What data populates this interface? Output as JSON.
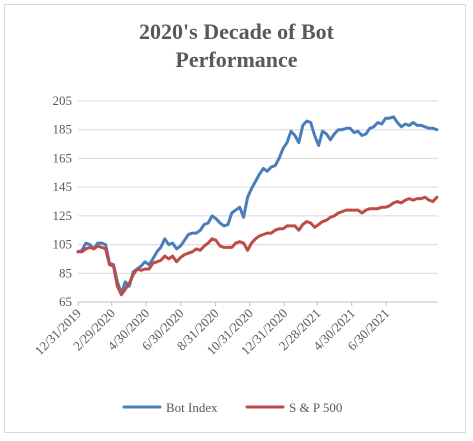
{
  "chart_data": {
    "type": "line",
    "title_lines": [
      "2020's Decade of Bot",
      "Performance"
    ],
    "xlabel": "",
    "ylabel": "",
    "ylim": [
      65,
      205
    ],
    "yticks": [
      65,
      85,
      105,
      125,
      145,
      165,
      185,
      205
    ],
    "xlim": [
      "2019-12-31",
      "2021-09-30"
    ],
    "xtick_labels": [
      "12/31/2019",
      "2/29/2020",
      "4/30/2020",
      "6/30/2020",
      "8/31/2020",
      "10/31/2020",
      "12/31/2020",
      "2/28/2021",
      "4/30/2021",
      "6/30/2021"
    ],
    "grid": "horizontal",
    "legend_position": "bottom",
    "x": [
      "2019-12-31",
      "2020-01-07",
      "2020-01-14",
      "2020-01-21",
      "2020-01-28",
      "2020-02-04",
      "2020-02-11",
      "2020-02-18",
      "2020-02-25",
      "2020-03-03",
      "2020-03-10",
      "2020-03-17",
      "2020-03-24",
      "2020-03-31",
      "2020-04-07",
      "2020-04-14",
      "2020-04-21",
      "2020-04-28",
      "2020-05-05",
      "2020-05-12",
      "2020-05-19",
      "2020-05-26",
      "2020-06-02",
      "2020-06-09",
      "2020-06-16",
      "2020-06-23",
      "2020-06-30",
      "2020-07-07",
      "2020-07-14",
      "2020-07-21",
      "2020-07-28",
      "2020-08-04",
      "2020-08-11",
      "2020-08-18",
      "2020-08-25",
      "2020-09-01",
      "2020-09-08",
      "2020-09-15",
      "2020-09-22",
      "2020-09-29",
      "2020-10-06",
      "2020-10-13",
      "2020-10-20",
      "2020-10-27",
      "2020-11-03",
      "2020-11-10",
      "2020-11-17",
      "2020-11-24",
      "2020-12-01",
      "2020-12-08",
      "2020-12-15",
      "2020-12-22",
      "2020-12-29",
      "2021-01-05",
      "2021-01-12",
      "2021-01-19",
      "2021-01-26",
      "2021-02-02",
      "2021-02-09",
      "2021-02-16",
      "2021-02-23",
      "2021-03-02",
      "2021-03-09",
      "2021-03-16",
      "2021-03-23",
      "2021-03-30",
      "2021-04-06",
      "2021-04-13",
      "2021-04-20",
      "2021-04-27",
      "2021-05-04",
      "2021-05-11",
      "2021-05-18",
      "2021-05-25",
      "2021-06-01",
      "2021-06-08",
      "2021-06-15",
      "2021-06-22",
      "2021-06-29",
      "2021-07-06",
      "2021-07-13",
      "2021-07-20",
      "2021-07-27",
      "2021-08-03",
      "2021-08-10",
      "2021-08-17",
      "2021-08-24",
      "2021-08-31",
      "2021-09-07",
      "2021-09-14",
      "2021-09-21",
      "2021-09-28"
    ],
    "series": [
      {
        "name": "Bot Index",
        "color": "#4a7ebb",
        "values": [
          100,
          101,
          106,
          105,
          102,
          106,
          106,
          105,
          92,
          91,
          79,
          71,
          79,
          76,
          86,
          88,
          90,
          93,
          91,
          95,
          100,
          103,
          109,
          105,
          106,
          102,
          104,
          108,
          112,
          113,
          113,
          115,
          119,
          120,
          125,
          123,
          120,
          118,
          119,
          127,
          129,
          131,
          124,
          138,
          144,
          149,
          154,
          158,
          156,
          159,
          160,
          165,
          172,
          176,
          184,
          181,
          176,
          188,
          191,
          190,
          181,
          174,
          184,
          182,
          178,
          182,
          185,
          185,
          186,
          186,
          183,
          184,
          181,
          182,
          186,
          187,
          190,
          189,
          193,
          193,
          194,
          190,
          187,
          189,
          188,
          190,
          188,
          188,
          187,
          186,
          186,
          185
        ]
      },
      {
        "name": "S & P 500",
        "color": "#be4b48",
        "values": [
          100,
          100,
          102,
          103,
          102,
          104,
          103,
          102,
          91,
          90,
          76,
          70,
          74,
          78,
          84,
          88,
          87,
          88,
          88,
          92,
          93,
          94,
          97,
          95,
          97,
          93,
          96,
          98,
          99,
          100,
          102,
          101,
          104,
          106,
          109,
          108,
          104,
          103,
          103,
          103,
          106,
          107,
          106,
          101,
          106,
          109,
          111,
          112,
          113,
          113,
          115,
          116,
          116,
          118,
          118,
          118,
          115,
          119,
          121,
          120,
          117,
          119,
          121,
          122,
          124,
          125,
          127,
          128,
          129,
          129,
          129,
          129,
          127,
          129,
          130,
          130,
          130,
          131,
          131,
          132,
          134,
          135,
          134,
          136,
          137,
          136,
          137,
          137,
          138,
          136,
          135,
          138
        ]
      }
    ]
  }
}
